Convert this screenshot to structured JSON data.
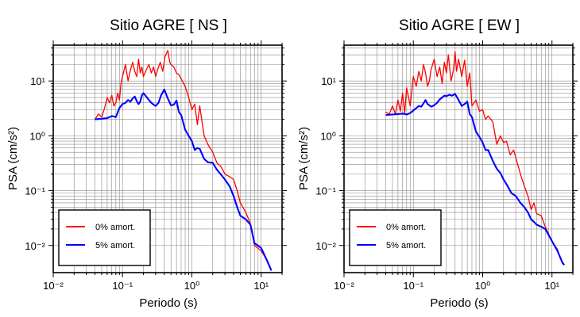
{
  "figure": {
    "panels": [
      {
        "title": "Sitio AGRE [ NS ]"
      },
      {
        "title": "Sitio AGRE [ EW ]"
      }
    ],
    "xlabel": "Periodo (s)",
    "ylabel": "PSA (cm/s²)"
  },
  "chart_data": [
    {
      "type": "line",
      "title": "Sitio AGRE [ NS ]",
      "xlabel": "Periodo (s)",
      "ylabel": "PSA (cm/s²)",
      "x_scale": "log",
      "y_scale": "log",
      "xlim": [
        0.01,
        20
      ],
      "ylim": [
        0.0032,
        45
      ],
      "grid": true,
      "legend_position": "bottom-left",
      "x_tick_labels": [
        "10⁻²",
        "10⁻¹",
        "10⁰",
        "10¹"
      ],
      "y_tick_labels": [
        "10⁻²",
        "10⁻¹",
        "10⁰",
        "10¹"
      ],
      "series": [
        {
          "name": "0% amort.",
          "color": "#ff0000",
          "x": [
            0.04,
            0.045,
            0.05,
            0.055,
            0.06,
            0.065,
            0.07,
            0.075,
            0.08,
            0.085,
            0.09,
            0.095,
            0.1,
            0.11,
            0.12,
            0.13,
            0.14,
            0.15,
            0.16,
            0.17,
            0.18,
            0.19,
            0.2,
            0.22,
            0.24,
            0.26,
            0.28,
            0.3,
            0.32,
            0.35,
            0.38,
            0.41,
            0.45,
            0.48,
            0.5,
            0.55,
            0.6,
            0.65,
            0.7,
            0.8,
            0.9,
            1.0,
            1.1,
            1.2,
            1.3,
            1.5,
            1.7,
            2.0,
            2.3,
            2.6,
            3.0,
            3.5,
            4.0,
            4.5,
            5.0,
            6.0,
            7.0,
            8.0,
            10.0,
            12.0,
            14.0
          ],
          "y": [
            2.0,
            2.5,
            2.2,
            3.2,
            5.0,
            4.0,
            5.5,
            3.5,
            4.0,
            6.0,
            4.5,
            9.0,
            12.0,
            20.0,
            10.0,
            16.0,
            22.0,
            15.0,
            12.0,
            25.0,
            14.0,
            18.0,
            12.0,
            16.0,
            20.0,
            14.0,
            18.0,
            12.0,
            16.0,
            22.0,
            15.0,
            28.0,
            36.0,
            22.0,
            20.0,
            18.0,
            14.0,
            13.0,
            11.0,
            8.0,
            5.0,
            3.0,
            3.8,
            1.6,
            3.5,
            1.0,
            0.7,
            0.5,
            0.32,
            0.28,
            0.2,
            0.18,
            0.16,
            0.1,
            0.06,
            0.04,
            0.025,
            0.01,
            0.008,
            0.0055,
            0.0035
          ]
        },
        {
          "name": "5% amort.",
          "color": "#0000ff",
          "x": [
            0.04,
            0.05,
            0.06,
            0.07,
            0.08,
            0.09,
            0.1,
            0.11,
            0.12,
            0.13,
            0.14,
            0.15,
            0.16,
            0.17,
            0.18,
            0.19,
            0.2,
            0.22,
            0.24,
            0.26,
            0.28,
            0.3,
            0.33,
            0.36,
            0.4,
            0.45,
            0.5,
            0.55,
            0.6,
            0.65,
            0.7,
            0.8,
            0.9,
            1.0,
            1.1,
            1.2,
            1.3,
            1.5,
            1.7,
            2.0,
            2.3,
            2.6,
            3.0,
            3.5,
            4.0,
            4.5,
            5.0,
            6.0,
            7.0,
            8.0,
            10.0,
            12.0,
            14.0
          ],
          "y": [
            2.0,
            2.05,
            2.1,
            2.3,
            2.2,
            3.2,
            3.8,
            4.0,
            4.5,
            4.2,
            4.8,
            5.2,
            4.3,
            3.8,
            4.2,
            5.5,
            6.0,
            5.2,
            4.5,
            4.0,
            3.7,
            3.5,
            4.0,
            5.5,
            7.0,
            4.8,
            3.6,
            3.7,
            4.4,
            2.7,
            2.4,
            1.3,
            1.0,
            0.8,
            0.55,
            0.6,
            0.58,
            0.38,
            0.33,
            0.32,
            0.24,
            0.2,
            0.16,
            0.12,
            0.08,
            0.05,
            0.035,
            0.03,
            0.024,
            0.011,
            0.009,
            0.0055,
            0.0035
          ]
        }
      ]
    },
    {
      "type": "line",
      "title": "Sitio AGRE [ EW ]",
      "xlabel": "Periodo (s)",
      "ylabel": "PSA (cm/s²)",
      "x_scale": "log",
      "y_scale": "log",
      "xlim": [
        0.01,
        20
      ],
      "ylim": [
        0.0032,
        45
      ],
      "grid": true,
      "legend_position": "bottom-left",
      "x_tick_labels": [
        "10⁻²",
        "10⁻¹",
        "10⁰",
        "10¹"
      ],
      "y_tick_labels": [
        "10⁻²",
        "10⁻¹",
        "10⁰",
        "10¹"
      ],
      "series": [
        {
          "name": "0% amort.",
          "color": "#ff0000",
          "x": [
            0.04,
            0.045,
            0.05,
            0.055,
            0.06,
            0.065,
            0.07,
            0.075,
            0.08,
            0.09,
            0.1,
            0.11,
            0.12,
            0.13,
            0.14,
            0.15,
            0.16,
            0.17,
            0.18,
            0.2,
            0.22,
            0.24,
            0.26,
            0.28,
            0.3,
            0.32,
            0.35,
            0.38,
            0.4,
            0.42,
            0.45,
            0.5,
            0.55,
            0.6,
            0.65,
            0.7,
            0.8,
            0.9,
            1.0,
            1.1,
            1.2,
            1.4,
            1.6,
            1.8,
            2.0,
            2.2,
            2.5,
            2.8,
            3.2,
            3.6,
            4.0,
            4.5,
            5.0,
            5.5,
            6.0,
            7.0,
            8.0,
            10.0,
            12.0,
            14.0,
            15.0
          ],
          "y": [
            2.7,
            2.5,
            3.5,
            2.5,
            4.5,
            2.8,
            6.0,
            2.6,
            7.5,
            3.5,
            12.0,
            8.0,
            15.0,
            10.0,
            20.0,
            14.0,
            8.0,
            10.0,
            16.0,
            25.0,
            12.0,
            18.0,
            9.0,
            22.0,
            14.0,
            30.0,
            10.0,
            16.0,
            34.0,
            15.0,
            25.0,
            12.0,
            24.0,
            8.0,
            14.0,
            3.5,
            4.5,
            2.8,
            3.0,
            2.0,
            2.3,
            1.8,
            0.7,
            1.0,
            0.75,
            0.8,
            0.45,
            0.55,
            0.3,
            0.18,
            0.12,
            0.08,
            0.045,
            0.06,
            0.038,
            0.035,
            0.022,
            0.012,
            0.0085,
            0.0048,
            0.0044
          ]
        },
        {
          "name": "5% amort.",
          "color": "#0000ff",
          "x": [
            0.04,
            0.05,
            0.06,
            0.07,
            0.08,
            0.09,
            0.1,
            0.11,
            0.12,
            0.13,
            0.14,
            0.15,
            0.16,
            0.17,
            0.18,
            0.2,
            0.22,
            0.24,
            0.26,
            0.28,
            0.3,
            0.33,
            0.36,
            0.4,
            0.45,
            0.5,
            0.55,
            0.6,
            0.65,
            0.7,
            0.8,
            0.9,
            1.0,
            1.1,
            1.2,
            1.4,
            1.6,
            1.8,
            2.0,
            2.3,
            2.6,
            3.0,
            3.5,
            4.0,
            4.5,
            5.0,
            5.5,
            6.0,
            7.0,
            8.0,
            10.0,
            12.0,
            14.0,
            15.0
          ],
          "y": [
            2.4,
            2.45,
            2.5,
            2.55,
            2.45,
            2.6,
            2.9,
            3.2,
            3.5,
            3.4,
            3.9,
            4.5,
            3.8,
            3.6,
            3.4,
            3.6,
            4.0,
            4.6,
            5.0,
            5.4,
            5.3,
            5.6,
            5.4,
            5.8,
            4.5,
            3.5,
            3.8,
            4.2,
            2.5,
            2.2,
            1.2,
            0.95,
            0.75,
            0.55,
            0.55,
            0.35,
            0.25,
            0.21,
            0.16,
            0.12,
            0.09,
            0.08,
            0.06,
            0.05,
            0.04,
            0.03,
            0.027,
            0.024,
            0.022,
            0.02,
            0.012,
            0.008,
            0.005,
            0.0044
          ]
        }
      ]
    }
  ]
}
